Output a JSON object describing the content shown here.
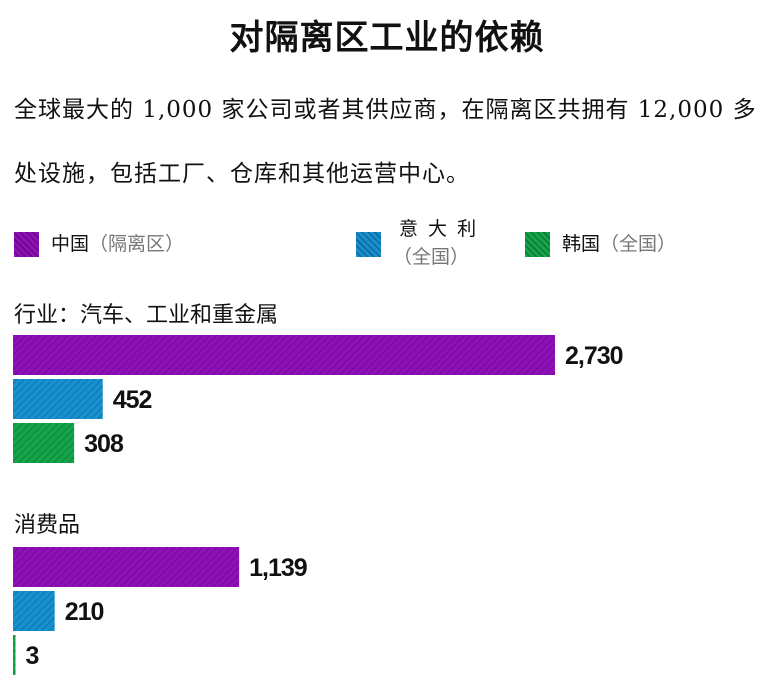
{
  "title": "对隔离区工业的依赖",
  "subtitle": "全球最大的 1,000 家公司或者其供应商，在隔离区共拥有 12,000 多处设施，包括工厂、仓库和其他运营中心。",
  "legend": [
    {
      "name": "中国",
      "region": "（隔离区）",
      "color": "#8f0fb8",
      "layout": "inline"
    },
    {
      "name": "意 大 利",
      "region": "（全国）",
      "color": "#1790d0",
      "layout": "stacked"
    },
    {
      "name": "韩国",
      "region": "（全国）",
      "color": "#14a44a",
      "layout": "inline"
    }
  ],
  "chart_data": {
    "type": "bar",
    "orientation": "horizontal",
    "categories": [
      "行业：汽车、工业和重金属",
      "消费品"
    ],
    "series": [
      {
        "name": "中国（隔离区）",
        "color": "#8f0fb8",
        "values": [
          2730,
          1139
        ]
      },
      {
        "name": "意大利（全国）",
        "color": "#1790d0",
        "values": [
          452,
          210
        ]
      },
      {
        "name": "韩国（全国）",
        "color": "#14a44a",
        "values": [
          308,
          3
        ]
      }
    ],
    "value_labels": [
      [
        "2,730",
        "452",
        "308"
      ],
      [
        "1,139",
        "210",
        "3"
      ]
    ],
    "grid": false,
    "legend_position": "top"
  }
}
